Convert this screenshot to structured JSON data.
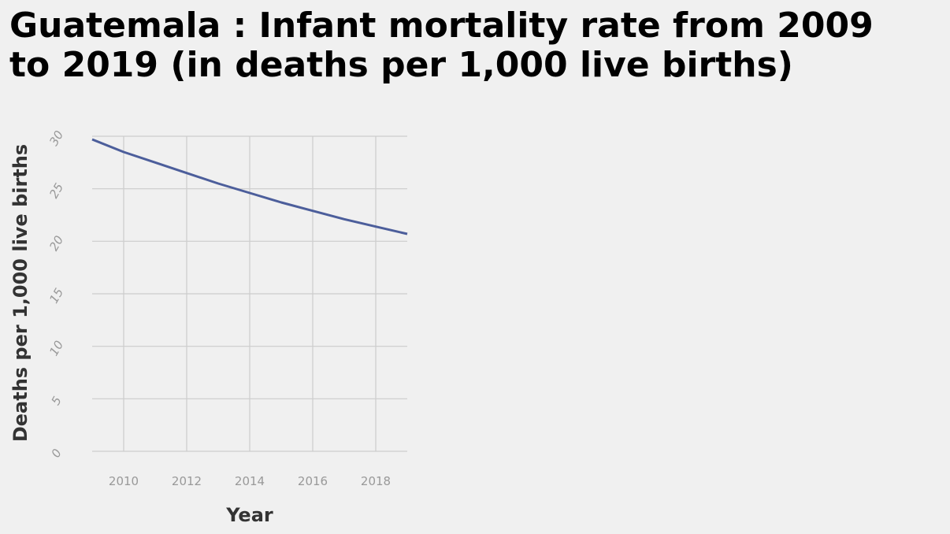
{
  "chart_data": {
    "type": "line",
    "title_lines": [
      "Guatemala : Infant mortality rate from 2009",
      "to 2019 (in deaths per 1,000 live births)"
    ],
    "xlabel": "Year",
    "ylabel": "Deaths per 1,000 live births",
    "x_ticks": [
      "2010",
      "2012",
      "2014",
      "2016",
      "2018"
    ],
    "y_ticks": [
      "0",
      "5",
      "10",
      "15",
      "20",
      "25",
      "30"
    ],
    "xlim": [
      2009,
      2019
    ],
    "ylim": [
      0,
      30
    ],
    "grid": true,
    "series": [
      {
        "x": [
          2009,
          2010,
          2011,
          2012,
          2013,
          2014,
          2015,
          2016,
          2017,
          2018,
          2019
        ],
        "values": [
          29.7,
          28.5,
          27.5,
          26.5,
          25.5,
          24.6,
          23.7,
          22.9,
          22.1,
          21.4,
          20.7
        ],
        "color": "#4c5e9b"
      }
    ],
    "colors": {
      "background": "#f0f0f0",
      "grid": "#cccccc",
      "tick_text": "#999999",
      "axis_text": "#333333",
      "title_text": "#000000"
    }
  }
}
